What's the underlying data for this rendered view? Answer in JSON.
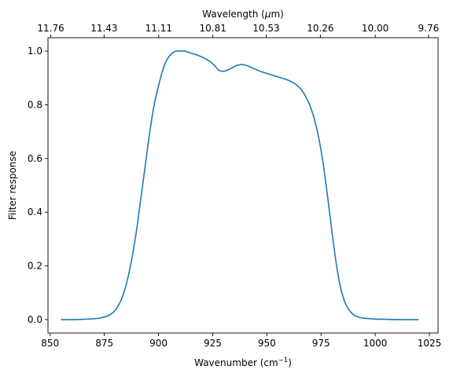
{
  "chart_data": {
    "type": "line",
    "title": "",
    "xlabel": "Wavenumber (cm",
    "xlabel_sup": "−1",
    "xlabel_end": ")",
    "ylabel": "Filter response",
    "top_axis_label_prefix": "Wavelength (",
    "top_axis_label_mu": "μ",
    "top_axis_label_suffix": "m)",
    "xlim": [
      849,
      1029
    ],
    "ylim": [
      -0.05,
      1.05
    ],
    "x_ticks": [
      850,
      875,
      900,
      925,
      950,
      975,
      1000,
      1025
    ],
    "y_ticks": [
      0.0,
      0.2,
      0.4,
      0.6,
      0.8,
      1.0
    ],
    "y_tick_labels": [
      "0.0",
      "0.2",
      "0.4",
      "0.6",
      "0.8",
      "1.0"
    ],
    "top_ticks": [
      {
        "x": 850.3,
        "label": "11.76"
      },
      {
        "x": 874.9,
        "label": "11.43"
      },
      {
        "x": 900.1,
        "label": "11.11"
      },
      {
        "x": 925.1,
        "label": "10.81"
      },
      {
        "x": 949.7,
        "label": "10.53"
      },
      {
        "x": 974.7,
        "label": "10.26"
      },
      {
        "x": 1000.0,
        "label": "10.00"
      },
      {
        "x": 1024.6,
        "label": "9.76"
      }
    ],
    "series": [
      {
        "color": "#1f77b4",
        "x": [
          855,
          860,
          865,
          870,
          873,
          876,
          878,
          880,
          882,
          884,
          886,
          888,
          890,
          892,
          894,
          896,
          898,
          900,
          902,
          904,
          906,
          908,
          910,
          912,
          914,
          916,
          918,
          920,
          922,
          924,
          926,
          928,
          930,
          932,
          934,
          936,
          938,
          940,
          942,
          944,
          946,
          948,
          950,
          952,
          954,
          956,
          958,
          960,
          962,
          964,
          966,
          968,
          970,
          972,
          974,
          976,
          978,
          980,
          982,
          984,
          986,
          988,
          990,
          992,
          995,
          1000,
          1005,
          1010,
          1015,
          1020
        ],
        "y": [
          0.0,
          0.0,
          0.001,
          0.003,
          0.006,
          0.012,
          0.02,
          0.035,
          0.06,
          0.1,
          0.16,
          0.24,
          0.34,
          0.46,
          0.58,
          0.7,
          0.8,
          0.87,
          0.93,
          0.97,
          0.99,
          1.0,
          1.0,
          1.0,
          0.995,
          0.99,
          0.985,
          0.978,
          0.97,
          0.96,
          0.945,
          0.928,
          0.925,
          0.93,
          0.938,
          0.946,
          0.95,
          0.948,
          0.942,
          0.935,
          0.928,
          0.922,
          0.917,
          0.912,
          0.907,
          0.902,
          0.897,
          0.891,
          0.883,
          0.872,
          0.855,
          0.83,
          0.795,
          0.745,
          0.675,
          0.58,
          0.46,
          0.33,
          0.21,
          0.12,
          0.065,
          0.035,
          0.018,
          0.01,
          0.005,
          0.002,
          0.001,
          0.0,
          0.0,
          0.0
        ]
      }
    ]
  }
}
